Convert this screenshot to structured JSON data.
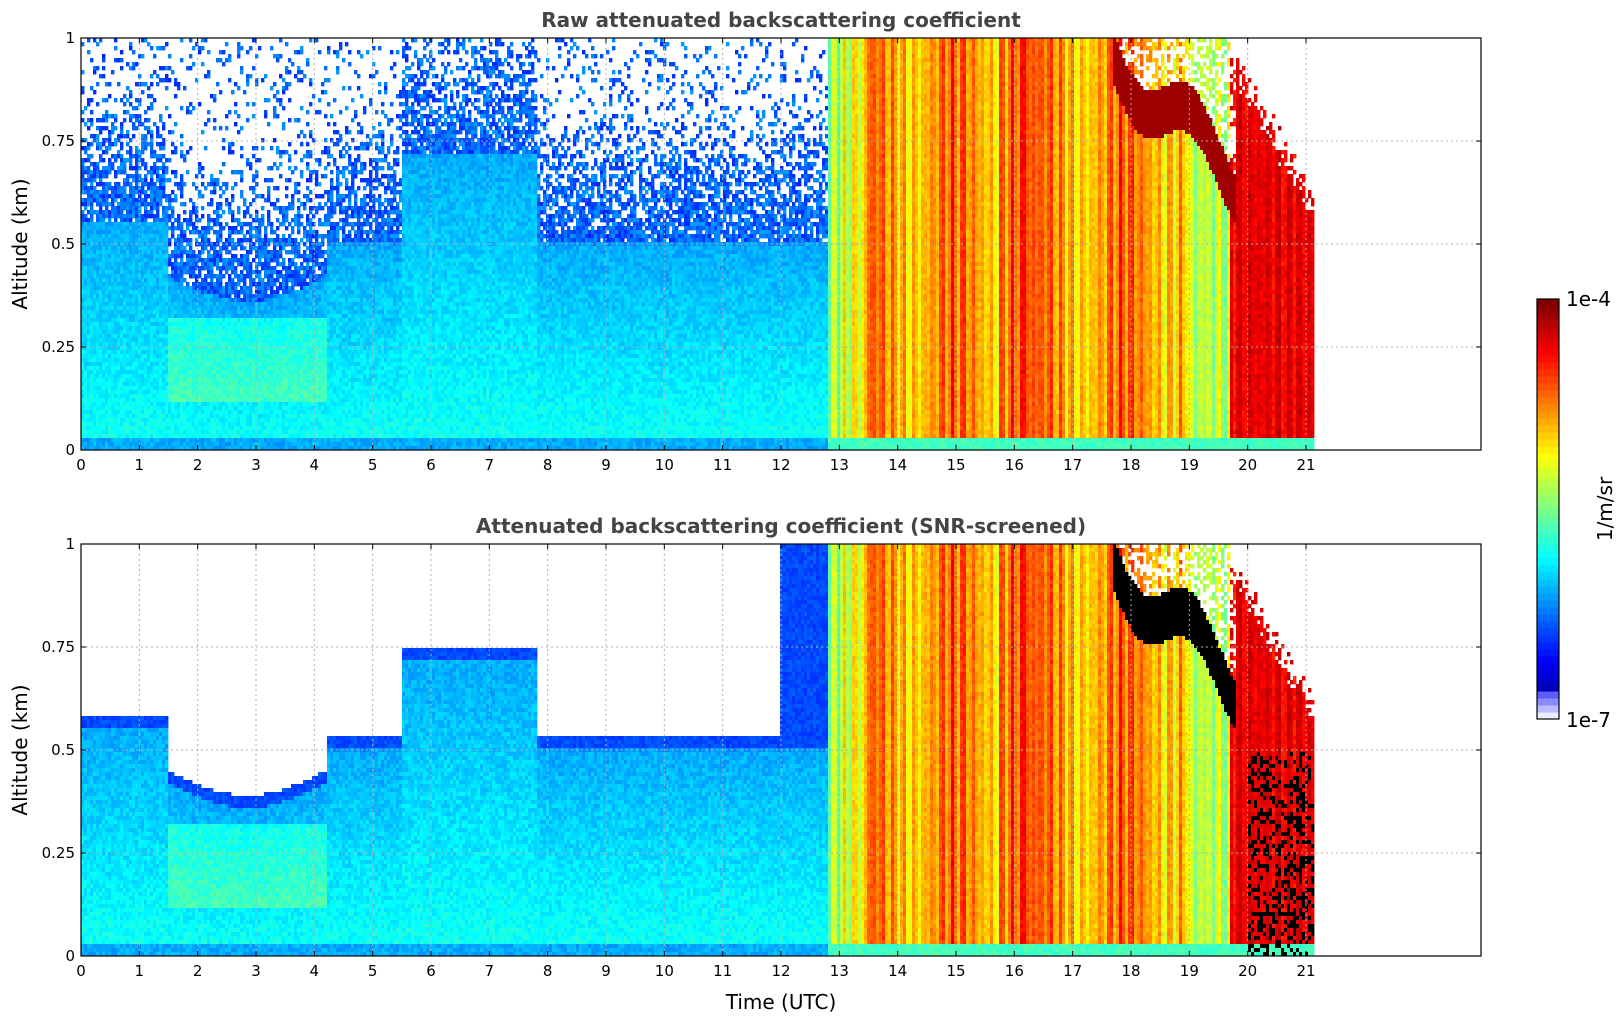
{
  "chart_data": [
    {
      "type": "heatmap",
      "title": "Raw attenuated backscattering coefficient",
      "xlabel": "",
      "ylabel": "Altitude (km)",
      "xlim": [
        0,
        24
      ],
      "ylim": [
        0,
        1
      ],
      "xticks": [
        "0",
        "1",
        "2",
        "3",
        "4",
        "5",
        "6",
        "7",
        "8",
        "9",
        "10",
        "11",
        "12",
        "13",
        "14",
        "15",
        "16",
        "17",
        "18",
        "19",
        "20",
        "21"
      ],
      "yticks": [
        "0",
        "0.25",
        "0.5",
        "0.75",
        "1"
      ],
      "grid": true,
      "data_end_hour": 21.15,
      "regions": [
        {
          "t_start": 0,
          "t_end": 12.8,
          "description_level": "low",
          "log10_value_range": [
            -6.6,
            -5.6
          ]
        },
        {
          "t_start": 12.8,
          "t_end": 13.5,
          "log10_value_range": [
            -5.6,
            -5.0
          ]
        },
        {
          "t_start": 13.5,
          "t_end": 19.0,
          "log10_value_range": [
            -4.9,
            -4.4
          ]
        },
        {
          "t_start": 19.0,
          "t_end": 19.7,
          "log10_value_range": [
            -5.3,
            -5.0
          ]
        },
        {
          "t_start": 19.7,
          "t_end": 21.15,
          "log10_value_range": [
            -4.3,
            -4.0
          ]
        }
      ]
    },
    {
      "type": "heatmap",
      "title": "Attenuated backscattering coefficient (SNR-screened)",
      "xlabel": "Time (UTC)",
      "ylabel": "Altitude (km)",
      "xlim": [
        0,
        24
      ],
      "ylim": [
        0,
        1
      ],
      "xticks": [
        "0",
        "1",
        "2",
        "3",
        "4",
        "5",
        "6",
        "7",
        "8",
        "9",
        "10",
        "11",
        "12",
        "13",
        "14",
        "15",
        "16",
        "17",
        "18",
        "19",
        "20",
        "21"
      ],
      "yticks": [
        "0",
        "0.25",
        "0.5",
        "0.75",
        "1"
      ],
      "grid": true,
      "data_end_hour": 21.15
    }
  ],
  "colorbar": {
    "label": "1/m/sr",
    "min_label": "1e-7",
    "max_label": "1e-4",
    "scale": "log",
    "colormap": "jet"
  }
}
